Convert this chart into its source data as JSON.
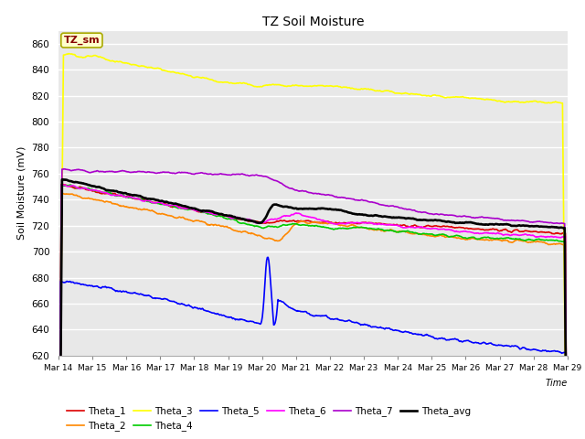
{
  "title": "TZ Soil Moisture",
  "ylabel": "Soil Moisture (mV)",
  "xlabel": "Time",
  "ylim": [
    620,
    870
  ],
  "yticks": [
    620,
    640,
    660,
    680,
    700,
    720,
    740,
    760,
    780,
    800,
    820,
    840,
    860
  ],
  "x_tick_labels": [
    "Mar 14",
    "Mar 15",
    "Mar 16",
    "Mar 17",
    "Mar 18",
    "Mar 19",
    "Mar 20",
    "Mar 21",
    "Mar 22",
    "Mar 23",
    "Mar 24",
    "Mar 25",
    "Mar 26",
    "Mar 27",
    "Mar 28",
    "Mar 29"
  ],
  "plot_bg": "#e8e8e8",
  "fig_bg": "#ffffff",
  "grid_color": "#ffffff",
  "series_colors": {
    "Theta_1": "#dd0000",
    "Theta_2": "#ff8800",
    "Theta_3": "#ffff00",
    "Theta_4": "#00cc00",
    "Theta_5": "#0000ff",
    "Theta_6": "#ff00ff",
    "Theta_7": "#aa00cc",
    "Theta_avg": "#000000"
  },
  "legend_box": {
    "text": "TZ_sm",
    "bg": "#ffffcc",
    "border": "#aaaa00",
    "text_color": "#880000"
  }
}
